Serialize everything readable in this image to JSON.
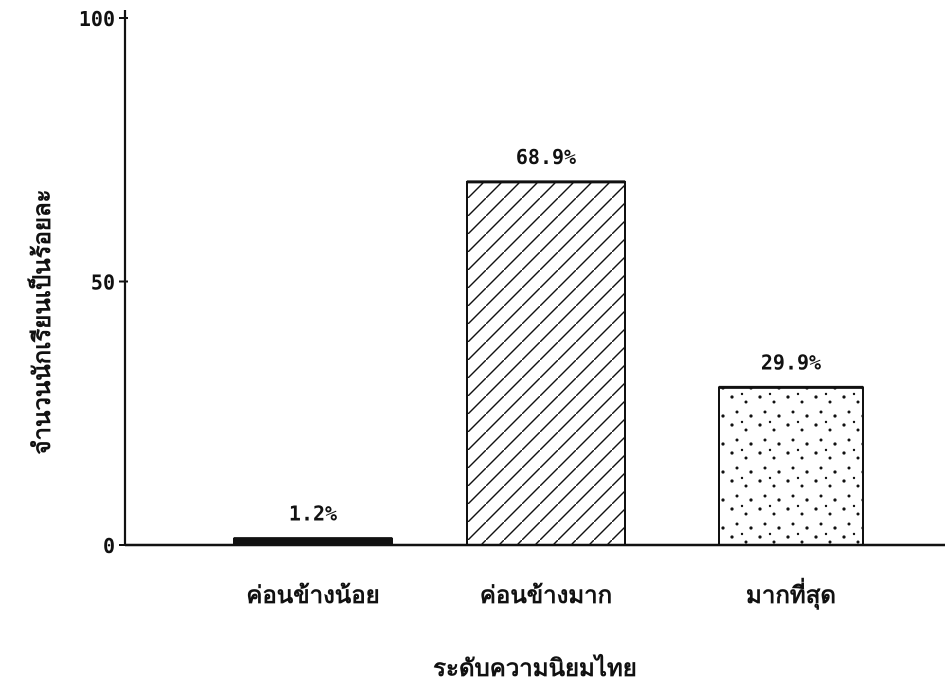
{
  "chart_data": {
    "type": "bar",
    "categories": [
      "ค่อนข้างน้อย",
      "ค่อนข้างมาก",
      "มากที่สุด"
    ],
    "values": [
      1.2,
      68.9,
      29.9
    ],
    "value_labels": [
      "1.2%",
      "68.9%",
      "29.9%"
    ],
    "title": "",
    "xlabel": "ระดับความนิยมไทย",
    "ylabel": "จำนวนนักเรียนเป็นร้อยละ",
    "ylim": [
      0,
      100
    ],
    "yticks": [
      "0",
      "50",
      "100"
    ],
    "grid": false,
    "legend": "none",
    "bar_patterns": [
      "dense-black",
      "diagonal-hatch",
      "dotted"
    ],
    "colors": {
      "background": "#ffffff",
      "ink": "#111111"
    }
  }
}
